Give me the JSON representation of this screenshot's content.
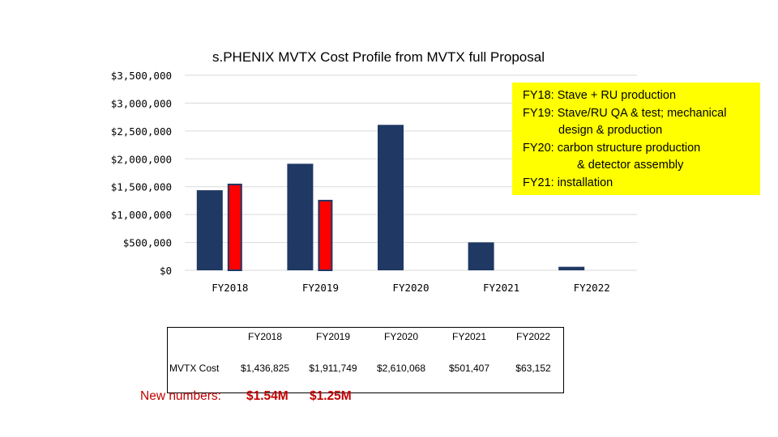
{
  "chart_data": {
    "type": "bar",
    "title": "s.PHENIX MVTX Cost Profile from MVTX full Proposal",
    "categories": [
      "FY2018",
      "FY2019",
      "FY2020",
      "FY2021",
      "FY2022"
    ],
    "series": [
      {
        "values": [
          1436825,
          1911749,
          2610068,
          501407,
          63152
        ],
        "color": "#1f3864"
      },
      {
        "values": [
          1540000,
          1250000,
          null,
          null,
          null
        ],
        "color": "#ff0000"
      }
    ],
    "yticks": [
      "$3,500,000",
      "$3,000,000",
      "$2,500,000",
      "$2,000,000",
      "$1,500,000",
      "$1,000,000",
      "$500,000",
      "$0"
    ],
    "ylim": [
      0,
      3500000
    ],
    "grid": true
  },
  "note": {
    "lines": [
      "FY18: Stave + RU production",
      "FY19: Stave/RU QA & test; mechanical",
      "design & production",
      "FY20: carbon structure production",
      "& detector assembly",
      "FY21: installation"
    ]
  },
  "table": {
    "headers": [
      "FY2018",
      "FY2019",
      "FY2020",
      "FY2021",
      "FY2022"
    ],
    "row_label": "MVTX Cost",
    "values": [
      "$1,436,825",
      "$1,911,749",
      "$2,610,068",
      "$501,407",
      "$63,152"
    ]
  },
  "new_numbers": {
    "label": "New numbers:",
    "fy2018": "$1.54M",
    "fy2019": "$1.25M"
  }
}
